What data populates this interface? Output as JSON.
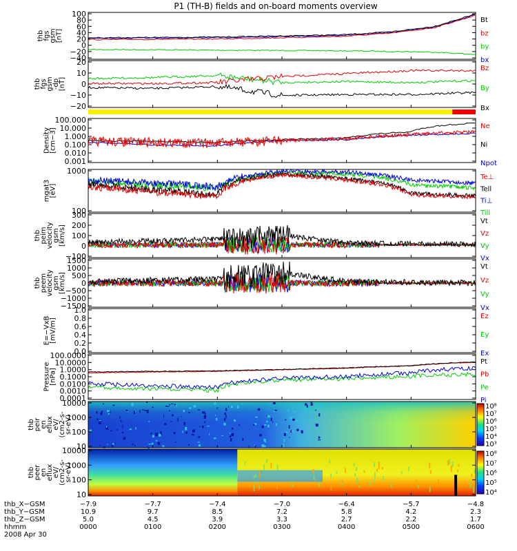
{
  "title": "P1 (TH-B) fields and on-board moments overview",
  "colors": {
    "black": "#000000",
    "red": "#e00000",
    "green": "#00cc00",
    "blue": "#0000dd",
    "bar_yellow": "#ffee00",
    "bar_red": "#ee0000"
  },
  "panels": [
    {
      "id": "fgs_gsm_total",
      "ylabel": [
        "thb",
        "fgs",
        "gsm",
        "[nT]"
      ],
      "yticks": [
        "100",
        "80",
        "60",
        "40",
        "20",
        "0",
        "−20",
        "−40"
      ],
      "legend": [
        {
          "label": "Bt",
          "color": "black"
        },
        {
          "label": "bz",
          "color": "red"
        },
        {
          "label": "by",
          "color": "green"
        },
        {
          "label": "bx",
          "color": "blue"
        }
      ]
    },
    {
      "id": "fgs_gsm_dp",
      "ylabel": [
        "thb",
        "fgs",
        "gsm",
        "-dp",
        "[nT]"
      ],
      "yticks": [
        "20",
        "10",
        "0",
        "−10",
        "−20"
      ],
      "legend": [
        {
          "label": "Bz",
          "color": "red"
        },
        {
          "label": "By",
          "color": "green"
        },
        {
          "label": "Bx",
          "color": "black"
        }
      ]
    },
    {
      "id": "density",
      "ylabel": [
        "Density",
        "[cm−3]"
      ],
      "yticks": [
        "100.000",
        "10.000",
        "1.000",
        "0.100",
        "0.010",
        "0.001"
      ],
      "legend": [
        {
          "label": "Ne",
          "color": "red"
        },
        {
          "label": "Ni",
          "color": "black"
        },
        {
          "label": "Npot",
          "color": "blue"
        }
      ]
    },
    {
      "id": "temperature",
      "ylabel": [
        "mgat3",
        "[eV]"
      ],
      "yticks": [
        "1000",
        "100"
      ],
      "legend": [
        {
          "label": "Te⊥",
          "color": "red"
        },
        {
          "label": "Tell",
          "color": "black"
        },
        {
          "label": "Ti⊥",
          "color": "blue"
        },
        {
          "label": "Till",
          "color": "green"
        }
      ]
    },
    {
      "id": "peim_velocity",
      "ylabel": [
        "thb",
        "peim",
        "velocity",
        "gsm",
        "[km/s]"
      ],
      "yticks": [
        "300",
        "200",
        "100",
        "0",
        "−100"
      ],
      "legend": [
        {
          "label": "Vt",
          "color": "black"
        },
        {
          "label": "Vz",
          "color": "red"
        },
        {
          "label": "Vy",
          "color": "green"
        },
        {
          "label": "Vx",
          "color": "blue"
        }
      ]
    },
    {
      "id": "peem_velocity",
      "ylabel": [
        "thb",
        "peem",
        "velocity",
        "gsm",
        "[km/s]"
      ],
      "yticks": [
        "1500",
        "1000",
        "500",
        "0",
        "−500",
        "−1000",
        "−1500"
      ],
      "legend": [
        {
          "label": "Vt",
          "color": "black"
        },
        {
          "label": "Vz",
          "color": "red"
        },
        {
          "label": "Vy",
          "color": "green"
        },
        {
          "label": "Vx",
          "color": "blue"
        }
      ]
    },
    {
      "id": "efield",
      "ylabel": [
        "E=−VxB",
        "[mV/m]"
      ],
      "yticks": [
        "1.0",
        "0.8",
        "0.6",
        "0.4",
        "0.2",
        "0.0"
      ],
      "legend": [
        {
          "label": "Ez",
          "color": "red"
        },
        {
          "label": "Ey",
          "color": "green"
        },
        {
          "label": "Ex",
          "color": "blue"
        }
      ]
    },
    {
      "id": "pressure",
      "ylabel": [
        "Pressure",
        "[nPa]"
      ],
      "yticks": [
        "100.0000",
        "10.0000",
        "1.0000",
        "0.1000",
        "0.0100",
        "0.0010",
        "0.0001"
      ],
      "legend": [
        {
          "label": "Pt",
          "color": "black"
        },
        {
          "label": "Pb",
          "color": "red"
        },
        {
          "label": "Pe",
          "color": "green"
        },
        {
          "label": "Pi",
          "color": "blue"
        }
      ]
    },
    {
      "id": "peir_eflux",
      "ylabel": [
        "thb",
        "peir",
        "en",
        "eflux",
        "eV/",
        "(cm2-s-",
        "sr-eV)"
      ],
      "yticks": [
        "10000",
        "1000",
        "100",
        "10"
      ],
      "colorbar": [
        "10⁸",
        "10⁷",
        "10⁶",
        "10⁵",
        "10⁴",
        "10³"
      ]
    },
    {
      "id": "peer_eflux",
      "ylabel": [
        "thb",
        "peer",
        "en",
        "eflux",
        "eV/",
        "(cm2-s-",
        "sr-eV)"
      ],
      "yticks": [
        "10000",
        "1000",
        "100",
        "10"
      ],
      "colorbar": [
        "10⁸",
        "10⁷",
        "10⁶",
        "10⁵",
        "10⁴"
      ]
    }
  ],
  "xaxis": {
    "rows": [
      {
        "label": "thb_X−GSM",
        "values": [
          "−7.9",
          "−7.7",
          "−7.4",
          "−7.0",
          "−6.4",
          "−5.7",
          "−4.8"
        ]
      },
      {
        "label": "thb_Y−GSM",
        "values": [
          "10.9",
          "9.7",
          "8.5",
          "7.2",
          "5.8",
          "4.2",
          "2.3"
        ]
      },
      {
        "label": "thb_Z−GSM",
        "values": [
          "5.0",
          "4.5",
          "3.9",
          "3.3",
          "2.7",
          "2.2",
          "1.7"
        ]
      },
      {
        "label": "hhmm",
        "values": [
          "0000",
          "0100",
          "0200",
          "0300",
          "0400",
          "0500",
          "0600"
        ]
      }
    ],
    "date": "2008 Apr 30"
  },
  "chart_data": {
    "type": "line",
    "title": "P1 (TH-B) fields and on-board moments overview",
    "x_time_hhmm": [
      "0000",
      "0100",
      "0200",
      "0300",
      "0400",
      "0500",
      "0600"
    ],
    "series": [
      {
        "name": "Bt",
        "panel": "fgs_gsm_total",
        "values": [
          24,
          26,
          30,
          33,
          42,
          60,
          100
        ]
      },
      {
        "name": "bz",
        "panel": "fgs_gsm_total",
        "values": [
          18,
          20,
          24,
          28,
          38,
          56,
          96
        ]
      },
      {
        "name": "by",
        "panel": "fgs_gsm_total",
        "values": [
          -14,
          -16,
          -17,
          -18,
          -20,
          -22,
          -30
        ]
      },
      {
        "name": "bx",
        "panel": "fgs_gsm_total",
        "values": [
          22,
          24,
          28,
          31,
          40,
          58,
          98
        ]
      },
      {
        "name": "Bz",
        "panel": "fgs_gsm_dp",
        "values": [
          -1,
          -1,
          0,
          6,
          9,
          12,
          12
        ]
      },
      {
        "name": "By",
        "panel": "fgs_gsm_dp",
        "values": [
          4,
          5,
          7,
          0,
          1,
          0,
          2
        ]
      },
      {
        "name": "Bx",
        "panel": "fgs_gsm_dp",
        "values": [
          -5,
          -6,
          -4,
          -13,
          -12,
          -12,
          -10
        ]
      },
      {
        "name": "Ne",
        "panel": "density",
        "values": [
          0.25,
          0.2,
          0.15,
          0.3,
          0.5,
          1.5,
          3
        ]
      },
      {
        "name": "Ni",
        "panel": "density",
        "values": [
          0.3,
          0.25,
          0.2,
          0.4,
          0.6,
          3,
          30
        ]
      },
      {
        "name": "Npot",
        "panel": "density",
        "values": [
          0.2,
          0.1,
          0.08,
          0.3,
          0.4,
          1.2,
          2
        ]
      },
      {
        "name": "Te⊥",
        "panel": "temperature",
        "values": [
          600,
          300,
          150,
          3000,
          1500,
          200,
          150
        ]
      },
      {
        "name": "Tell",
        "panel": "temperature",
        "values": [
          800,
          400,
          200,
          3500,
          1800,
          250,
          180
        ]
      },
      {
        "name": "Ti⊥",
        "panel": "temperature",
        "values": [
          1500,
          1000,
          600,
          5000,
          4500,
          1500,
          1000
        ]
      },
      {
        "name": "Till",
        "panel": "temperature",
        "values": [
          1200,
          800,
          500,
          4000,
          3500,
          800,
          500
        ]
      },
      {
        "name": "Vt",
        "panel": "peim_velocity",
        "values": [
          30,
          40,
          60,
          100,
          20,
          10,
          5
        ]
      },
      {
        "name": "Vt",
        "panel": "peem_velocity",
        "values": [
          100,
          200,
          300,
          700,
          100,
          50,
          20
        ]
      },
      {
        "name": "Pt",
        "panel": "pressure",
        "values": [
          0.4,
          0.5,
          0.6,
          0.9,
          1.5,
          3,
          10
        ]
      },
      {
        "name": "Pb",
        "panel": "pressure",
        "values": [
          0.3,
          0.4,
          0.5,
          0.8,
          1.3,
          2.8,
          9
        ]
      },
      {
        "name": "Pe",
        "panel": "pressure",
        "values": [
          0.003,
          0.002,
          0.001,
          0.03,
          0.05,
          0.1,
          0.2
        ]
      },
      {
        "name": "Pi",
        "panel": "pressure",
        "values": [
          0.01,
          0.005,
          0.003,
          0.05,
          0.1,
          0.3,
          1.5
        ]
      }
    ]
  }
}
